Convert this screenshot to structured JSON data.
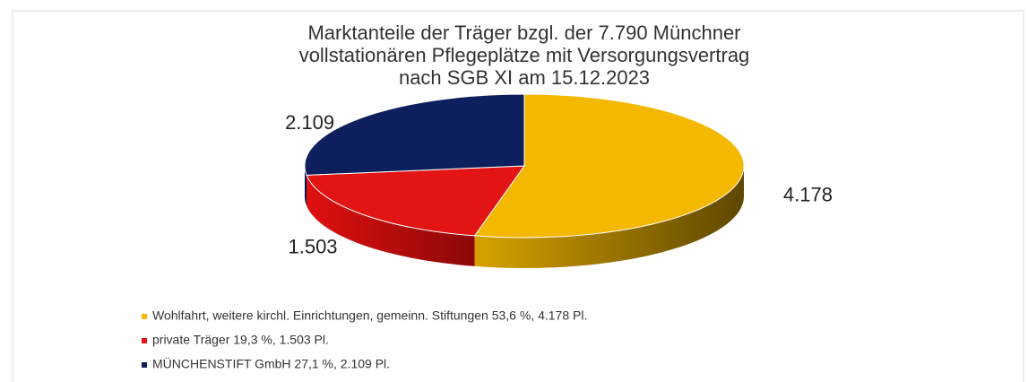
{
  "chart_data": {
    "type": "pie3d",
    "title": [
      "Marktanteile der Träger bzgl. der 7.790 Münchner",
      "vollstationären Pflegeplätze mit Versorgungsvertrag",
      "nach SGB XI am 15.12.2023"
    ],
    "categories": [
      "Wohlfahrt, weitere kirchl. Einrichtungen, gemeinn. Stiftungen 53,6 %, 4.178 Pl.",
      "private Träger 19,3 %, 1.503 Pl.",
      "MÜNCHENSTIFT GmbH 27,1 %, 2.109 Pl."
    ],
    "values": [
      4178,
      1503,
      2109
    ],
    "value_labels": [
      "4.178",
      "1.503",
      "2.109"
    ],
    "colors": [
      "#f5b800",
      "#e31414",
      "#0d1f5c"
    ],
    "side_colors": [
      "#8a6a00",
      "#8c0808",
      "#050c2a"
    ]
  }
}
